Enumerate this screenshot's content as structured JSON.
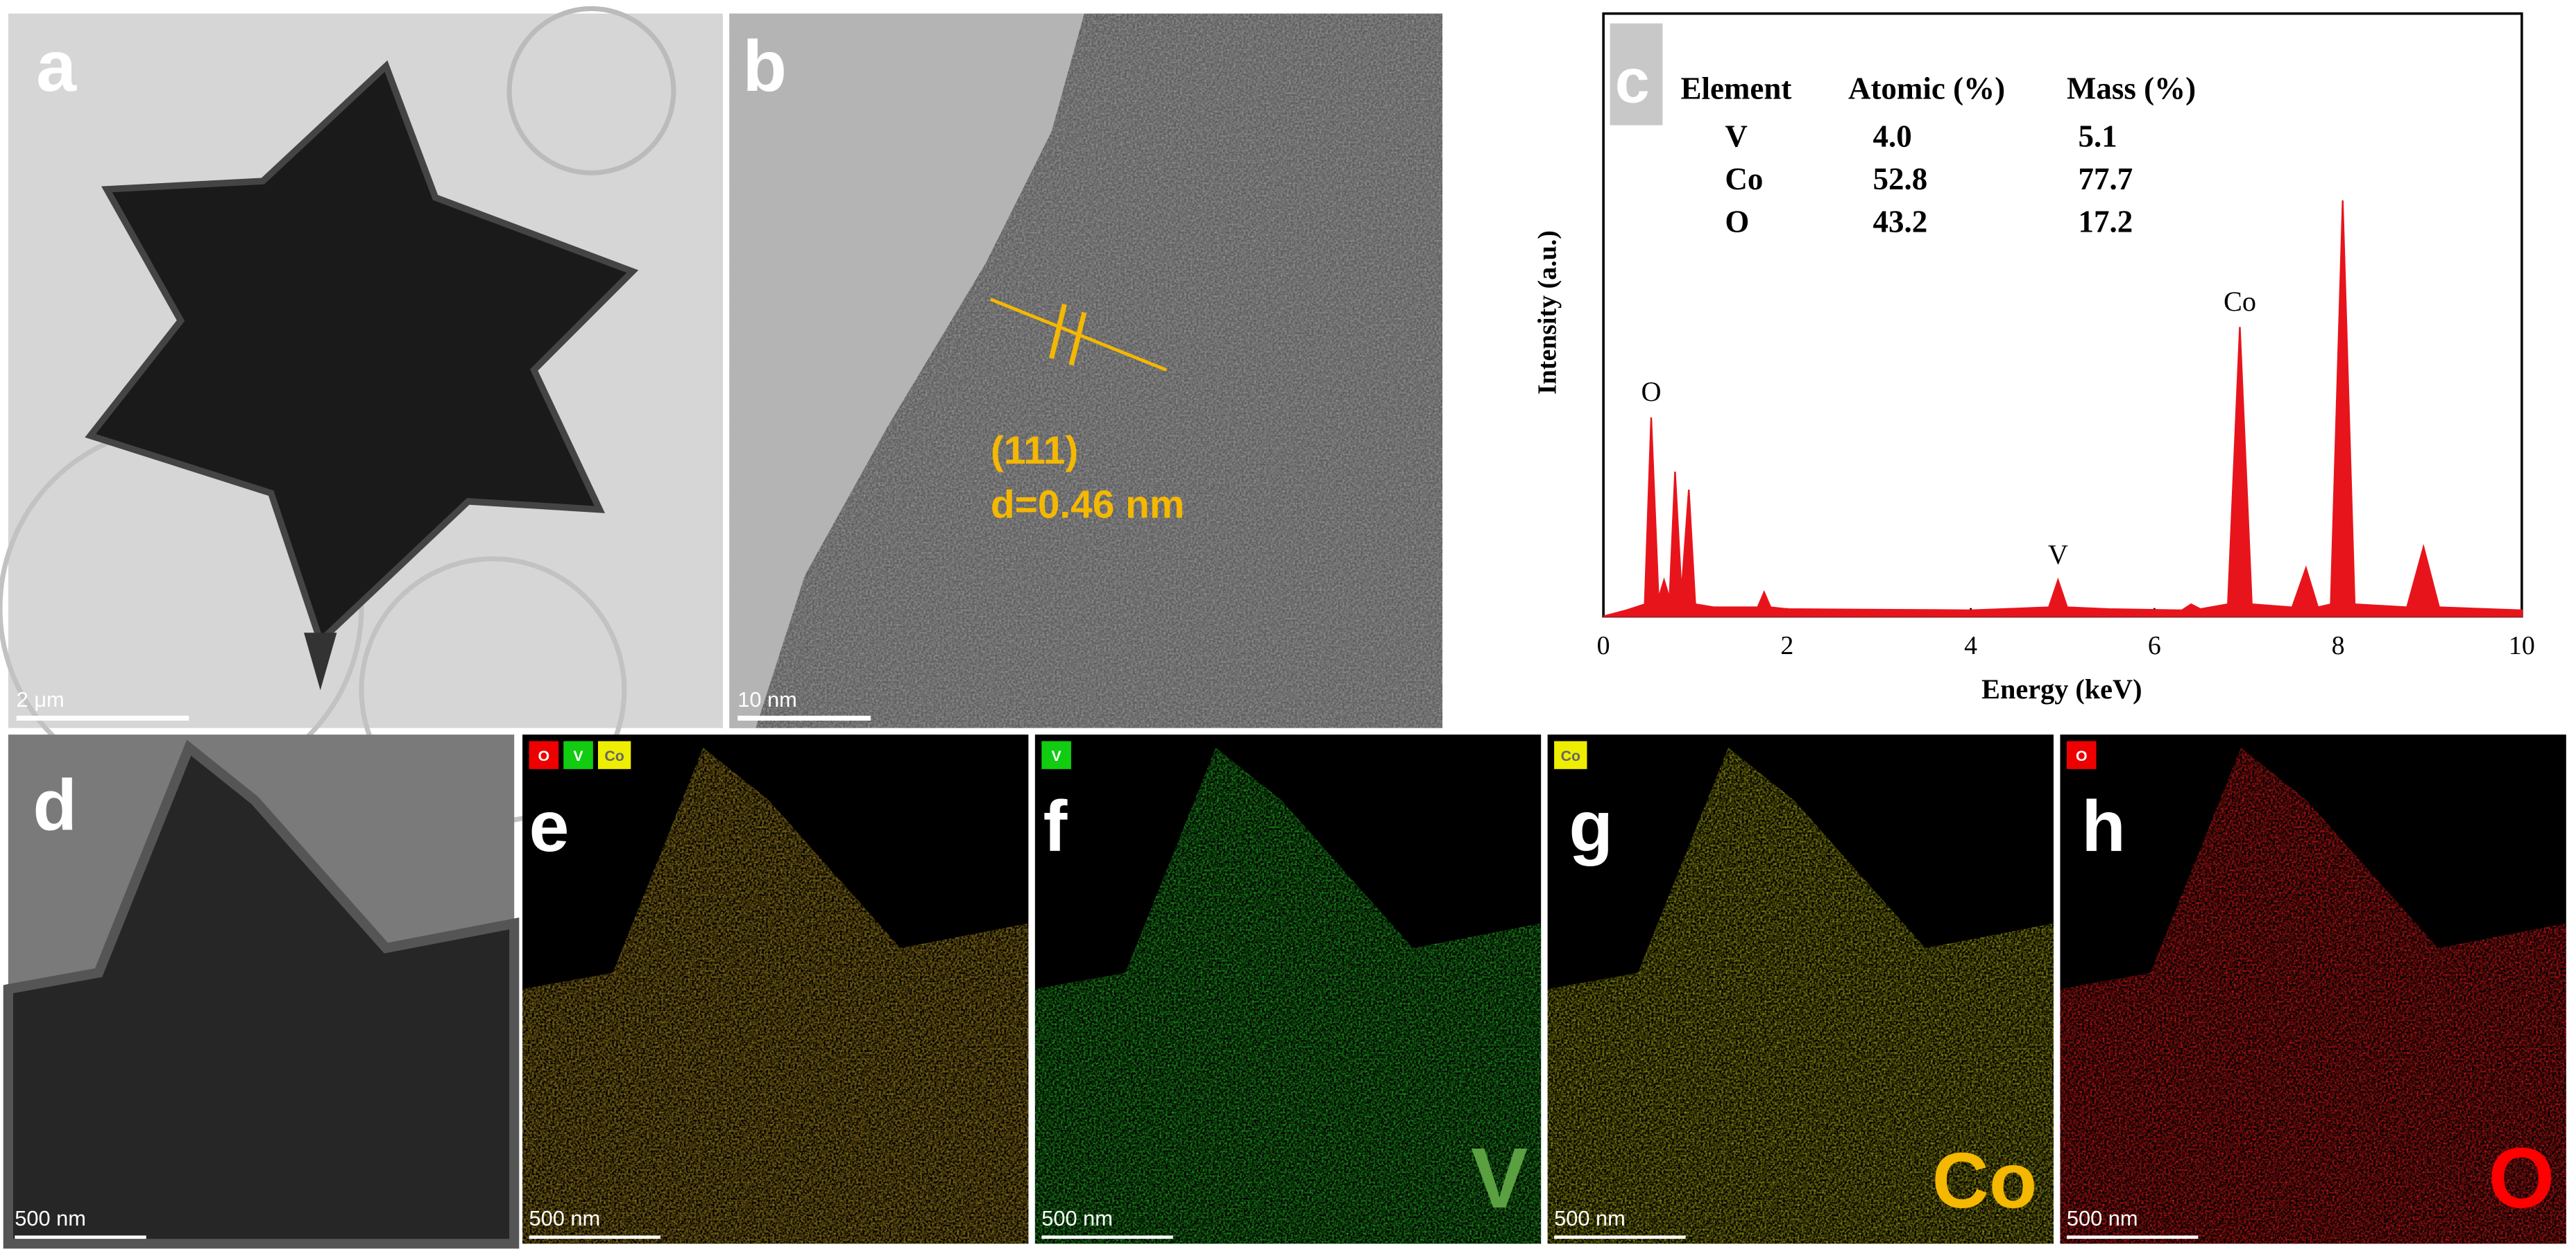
{
  "panels": [
    {
      "label": "a",
      "scale_bar": "2 μm"
    },
    {
      "label": "b",
      "scale_bar": "10 nm"
    },
    {
      "label": "c"
    },
    {
      "label": "d",
      "scale_bar": "500 nm"
    },
    {
      "label": "e",
      "scale_bar": "500 nm",
      "tags": [
        "O",
        "V",
        "Co"
      ]
    },
    {
      "label": "f",
      "scale_bar": "500 nm",
      "tags": [
        "V"
      ],
      "element": "V"
    },
    {
      "label": "g",
      "scale_bar": "500 nm",
      "tags": [
        "Co"
      ],
      "element": "Co"
    },
    {
      "label": "h",
      "scale_bar": "500 nm",
      "tags": [
        "O"
      ],
      "element": "O"
    }
  ],
  "hrtem_annotation": {
    "plane": "(111)",
    "spacing": "d=0.46 nm"
  },
  "eds_table": {
    "header": [
      "Element",
      "Atomic (%)",
      "Mass (%)"
    ],
    "rows": [
      [
        "V",
        "4.0",
        "5.1"
      ],
      [
        "Co",
        "52.8",
        "77.7"
      ],
      [
        "O",
        "43.2",
        "17.2"
      ]
    ]
  },
  "chart_data": {
    "type": "area",
    "x_label": "Energy (keV)",
    "y_label": "Intensity (a.u.)",
    "x": [
      0,
      0.25,
      0.45,
      0.52,
      0.6,
      0.66,
      0.72,
      0.78,
      0.85,
      0.93,
      1.0,
      1.2,
      1.68,
      1.75,
      1.82,
      2.0,
      4.0,
      4.85,
      4.95,
      5.05,
      5.5,
      6.3,
      6.4,
      6.5,
      6.8,
      6.93,
      7.06,
      7.5,
      7.65,
      7.78,
      7.92,
      8.05,
      8.18,
      8.75,
      8.93,
      9.1,
      10
    ],
    "values": [
      0,
      1,
      2,
      33,
      3,
      6,
      3,
      24,
      4,
      21,
      2,
      1.5,
      1.5,
      4,
      1.5,
      1.2,
      1,
      1.5,
      6,
      1.5,
      1.2,
      1,
      2,
      1.2,
      2,
      48,
      2,
      1.5,
      8,
      1.5,
      2,
      69,
      2,
      1.5,
      11.5,
      1.5,
      1
    ],
    "color": "#e8141c",
    "xlim": [
      0,
      10
    ],
    "xticks": [
      0,
      2,
      4,
      6,
      8,
      10
    ],
    "ylim": [
      0,
      100
    ],
    "annotations": [
      {
        "text": "O",
        "x": 0.52
      },
      {
        "text": "V",
        "x": 4.95
      },
      {
        "text": "Co",
        "x": 6.93
      }
    ]
  }
}
